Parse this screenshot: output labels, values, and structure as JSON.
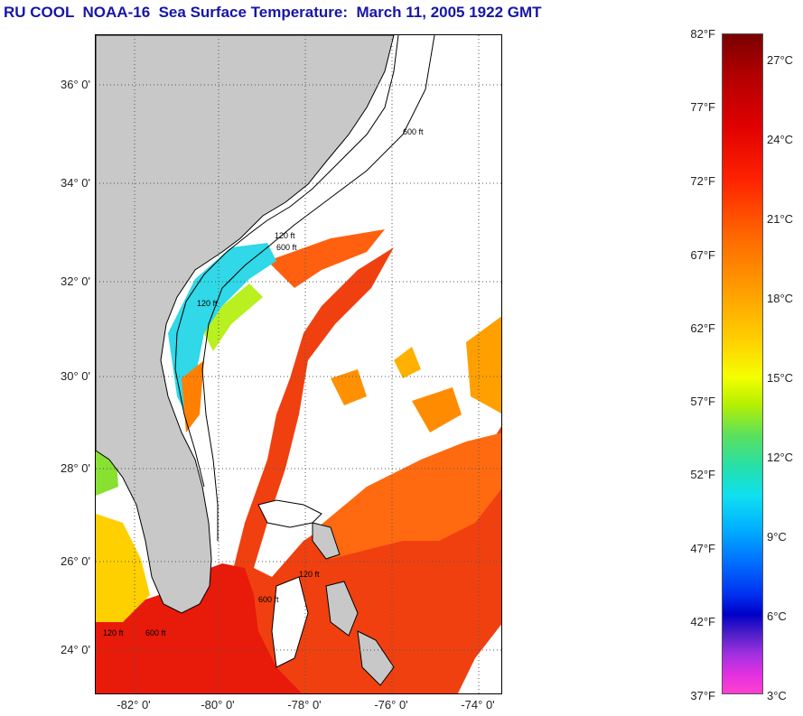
{
  "title": "RU COOL  NOAA-16  Sea Surface Temperature:  March 11, 2005 1922 GMT",
  "map": {
    "lat_ticks": [
      "36° 0'",
      "34° 0'",
      "32° 0'",
      "30° 0'",
      "28° 0'",
      "26° 0'",
      "24° 0'"
    ],
    "lon_ticks": [
      "-82° 0'",
      "-80° 0'",
      "-78° 0'",
      "-76° 0'",
      "-74° 0'"
    ],
    "contour_labels": [
      "120 ft",
      "600 ft",
      "120 ft",
      "600 ft",
      "120 ft",
      "600 ft",
      "120 ft",
      "600 ft"
    ],
    "land_color": "#c8c8c8",
    "cloud_color": "#ffffff"
  },
  "colorbar": {
    "fahrenheit": [
      "82°F",
      "77°F",
      "72°F",
      "67°F",
      "62°F",
      "57°F",
      "52°F",
      "47°F",
      "42°F",
      "37°F"
    ],
    "celsius": [
      "27°C",
      "24°C",
      "21°C",
      "18°C",
      "15°C",
      "12°C",
      "9°C",
      "6°C",
      "3°C"
    ]
  }
}
